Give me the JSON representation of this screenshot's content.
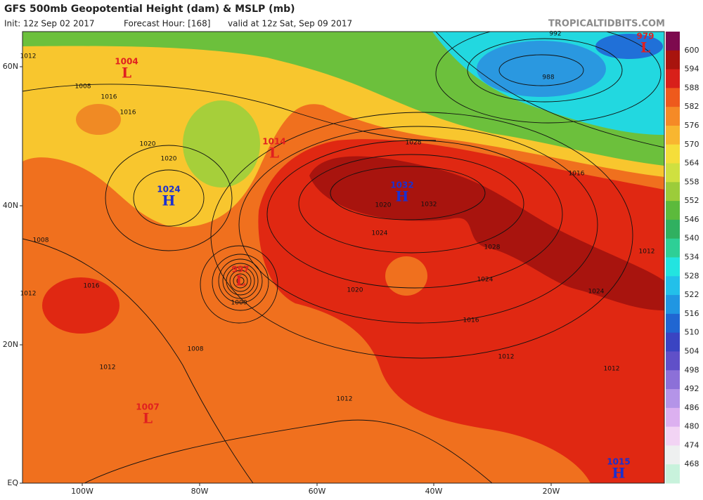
{
  "header": {
    "title": "GFS 500mb Geopotential Height (dam) & MSLP (mb)",
    "init": "Init: 12z Sep 02 2017",
    "forecast": "Forecast Hour: [168]",
    "valid": "valid at 12z Sat, Sep 09 2017",
    "site": "TROPICALTIDBITS.COM"
  },
  "colorbar": {
    "labels": [
      "600",
      "594",
      "588",
      "582",
      "576",
      "570",
      "564",
      "558",
      "552",
      "546",
      "540",
      "534",
      "528",
      "522",
      "516",
      "510",
      "504",
      "498",
      "492",
      "486",
      "480",
      "474",
      "468"
    ],
    "colors": [
      "#7d0a4e",
      "#a8140e",
      "#d8201a",
      "#ee5a1c",
      "#f58a26",
      "#f8b630",
      "#f5de3a",
      "#cfe040",
      "#9ccc3a",
      "#5cba3c",
      "#30b060",
      "#2ecf96",
      "#22e4e0",
      "#22c0ea",
      "#2096e2",
      "#2066d2",
      "#3a44c2",
      "#6050c8",
      "#8c70d8",
      "#b494e8",
      "#dcb0f0",
      "#f2d4f4",
      "#eef0f0",
      "#c8f2dc"
    ]
  },
  "axes": {
    "lat_labels": [
      "60N",
      "40N",
      "20N",
      "EQ"
    ],
    "lon_labels": [
      "100W",
      "80W",
      "60W",
      "40W",
      "20W"
    ]
  },
  "centers": [
    {
      "kind": "L",
      "value": "1004"
    },
    {
      "kind": "L",
      "value": "1014"
    },
    {
      "kind": "H",
      "value": "1024"
    },
    {
      "kind": "H",
      "value": "1032"
    },
    {
      "kind": "L",
      "value": "997"
    },
    {
      "kind": "L",
      "value": "979"
    },
    {
      "kind": "L",
      "value": "1007"
    },
    {
      "kind": "H",
      "value": "1015"
    }
  ],
  "isobar_labels": [
    "1012",
    "1008",
    "1016",
    "1020",
    "1008",
    "1012",
    "1016",
    "1020",
    "1024",
    "1028",
    "1024",
    "1020",
    "1016",
    "1012",
    "1008",
    "1000",
    "1028",
    "1024",
    "1020",
    "1016",
    "1012",
    "988",
    "992",
    "1016",
    "1012",
    "1012",
    "1012",
    "1032"
  ]
}
